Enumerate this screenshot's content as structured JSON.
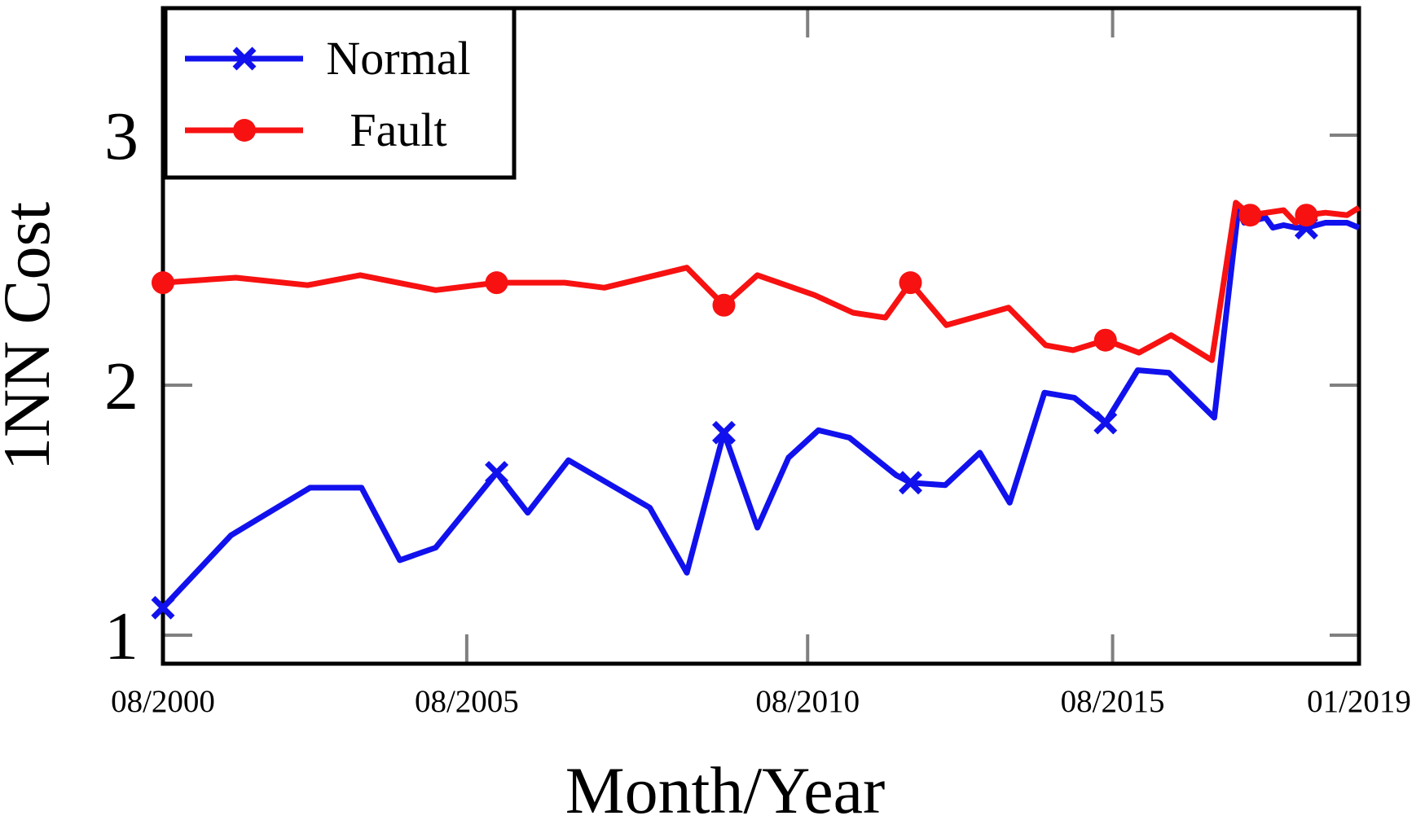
{
  "chart_data": {
    "type": "line",
    "title": "",
    "xlabel": "Month/Year",
    "ylabel": "1NN Cost",
    "grid": false,
    "legend_position": "top-left",
    "ylim": [
      0.89,
      3.51
    ],
    "x_encoding": "fraction of x-axis between first tick (08/2000) and last tick (01/2019); tick spacing in the source plot is index-based and uneven",
    "x_axis": {
      "ticks": [
        {
          "pos": 0.0,
          "label": "08/2000"
        },
        {
          "pos": 0.254,
          "label": "08/2005"
        },
        {
          "pos": 0.539,
          "label": "08/2010"
        },
        {
          "pos": 0.794,
          "label": "08/2015"
        },
        {
          "pos": 1.0,
          "label": "01/2019"
        }
      ]
    },
    "y_axis": {
      "ticks": [
        {
          "value": 1,
          "label": "1"
        },
        {
          "value": 2,
          "label": "2"
        },
        {
          "value": 3,
          "label": "3"
        }
      ]
    },
    "series": [
      {
        "name": "Normal",
        "color": "#1111ee",
        "marker": "x",
        "points": [
          [
            0.0,
            1.11,
            1
          ],
          [
            0.057,
            1.4,
            0
          ],
          [
            0.123,
            1.59,
            0
          ],
          [
            0.166,
            1.59,
            0
          ],
          [
            0.198,
            1.3,
            0
          ],
          [
            0.228,
            1.35,
            0
          ],
          [
            0.279,
            1.65,
            1
          ],
          [
            0.305,
            1.49,
            0
          ],
          [
            0.339,
            1.7,
            0
          ],
          [
            0.407,
            1.51,
            0
          ],
          [
            0.438,
            1.25,
            0
          ],
          [
            0.469,
            1.81,
            1
          ],
          [
            0.497,
            1.43,
            0
          ],
          [
            0.523,
            1.71,
            0
          ],
          [
            0.548,
            1.82,
            0
          ],
          [
            0.574,
            1.79,
            0
          ],
          [
            0.613,
            1.64,
            0
          ],
          [
            0.625,
            1.61,
            1
          ],
          [
            0.654,
            1.6,
            0
          ],
          [
            0.683,
            1.73,
            0
          ],
          [
            0.708,
            1.53,
            0
          ],
          [
            0.737,
            1.97,
            0
          ],
          [
            0.762,
            1.95,
            0
          ],
          [
            0.788,
            1.85,
            1
          ],
          [
            0.815,
            2.06,
            0
          ],
          [
            0.841,
            2.05,
            0
          ],
          [
            0.879,
            1.87,
            0
          ],
          [
            0.899,
            2.7,
            0
          ],
          [
            0.904,
            2.65,
            0
          ],
          [
            0.922,
            2.67,
            0
          ],
          [
            0.928,
            2.63,
            0
          ],
          [
            0.937,
            2.64,
            0
          ],
          [
            0.947,
            2.63,
            0
          ],
          [
            0.956,
            2.63,
            1
          ],
          [
            0.972,
            2.65,
            0
          ],
          [
            0.99,
            2.65,
            0
          ],
          [
            1.0,
            2.63,
            0
          ]
        ]
      },
      {
        "name": "Fault",
        "color": "#f71111",
        "marker": "circle",
        "points": [
          [
            0.0,
            2.41,
            1
          ],
          [
            0.061,
            2.43,
            0
          ],
          [
            0.121,
            2.4,
            0
          ],
          [
            0.165,
            2.44,
            0
          ],
          [
            0.228,
            2.38,
            0
          ],
          [
            0.279,
            2.41,
            1
          ],
          [
            0.336,
            2.41,
            0
          ],
          [
            0.369,
            2.39,
            0
          ],
          [
            0.438,
            2.47,
            0
          ],
          [
            0.469,
            2.32,
            1
          ],
          [
            0.497,
            2.44,
            0
          ],
          [
            0.545,
            2.36,
            0
          ],
          [
            0.577,
            2.29,
            0
          ],
          [
            0.604,
            2.27,
            0
          ],
          [
            0.625,
            2.41,
            1
          ],
          [
            0.655,
            2.24,
            0
          ],
          [
            0.707,
            2.31,
            0
          ],
          [
            0.738,
            2.16,
            0
          ],
          [
            0.761,
            2.14,
            0
          ],
          [
            0.788,
            2.18,
            1
          ],
          [
            0.816,
            2.13,
            0
          ],
          [
            0.843,
            2.2,
            0
          ],
          [
            0.877,
            2.1,
            0
          ],
          [
            0.897,
            2.73,
            0
          ],
          [
            0.909,
            2.68,
            1
          ],
          [
            0.937,
            2.7,
            0
          ],
          [
            0.947,
            2.65,
            0
          ],
          [
            0.956,
            2.68,
            1
          ],
          [
            0.972,
            2.69,
            0
          ],
          [
            0.99,
            2.68,
            0
          ],
          [
            1.0,
            2.71,
            0
          ]
        ]
      }
    ],
    "legend": {
      "normal": "Normal",
      "fault": "Fault"
    }
  }
}
